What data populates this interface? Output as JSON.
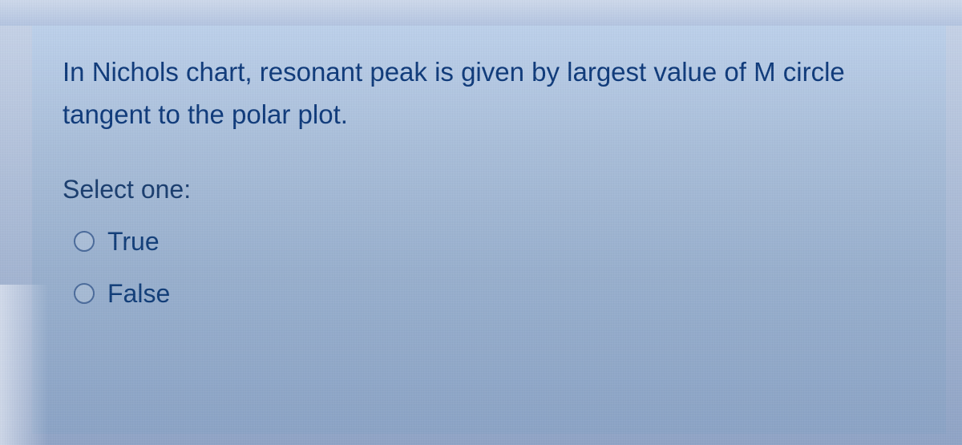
{
  "question": {
    "text": "In Nichols chart,  resonant peak is given by largest value of M circle tangent to the polar plot.",
    "text_color": "#0f3a7a",
    "font_size_pt": 24
  },
  "prompt": {
    "label": "Select one:",
    "color": "#1a3d6e",
    "font_size_pt": 23
  },
  "answers": [
    {
      "label": "True",
      "selected": false
    },
    {
      "label": "False",
      "selected": false
    }
  ],
  "styling": {
    "card_gradient_top": "#bcd0ea",
    "card_gradient_bottom": "#8ba3c5",
    "body_gradient_top": "#c8d4e8",
    "body_gradient_bottom": "#8fa3c5",
    "radio_border_color": "#4a6a9a",
    "answer_color": "#113d78"
  }
}
